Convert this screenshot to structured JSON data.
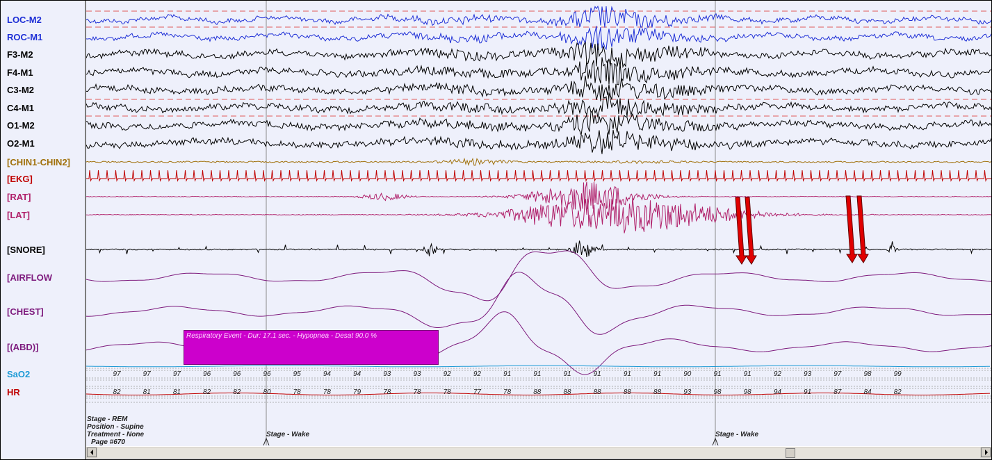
{
  "channels": [
    {
      "label": "LOC-M2",
      "color": "#1e2fd6"
    },
    {
      "label": "ROC-M1",
      "color": "#1e2fd6"
    },
    {
      "label": "F3-M2",
      "color": "#000000"
    },
    {
      "label": "F4-M1",
      "color": "#000000"
    },
    {
      "label": "C3-M2",
      "color": "#000000"
    },
    {
      "label": "C4-M1",
      "color": "#000000"
    },
    {
      "label": "O1-M2",
      "color": "#000000"
    },
    {
      "label": "O2-M1",
      "color": "#000000"
    },
    {
      "label": "[CHIN1-CHIN2]",
      "color": "#a0700a"
    },
    {
      "label": "[EKG]",
      "color": "#c00000"
    },
    {
      "label": "[RAT]",
      "color": "#b0206a"
    },
    {
      "label": "[LAT]",
      "color": "#b0206a"
    },
    {
      "label": "[SNORE]",
      "color": "#000000"
    },
    {
      "label": "[AIRFLOW",
      "color": "#7d1a7d"
    },
    {
      "label": "[CHEST]",
      "color": "#7d1a7d"
    },
    {
      "label": "[(ABD)]",
      "color": "#7d1a7d"
    },
    {
      "label": "SaO2",
      "color": "#1e9bd6"
    },
    {
      "label": "HR",
      "color": "#c00000"
    }
  ],
  "sao2_values": [
    "97",
    "97",
    "97",
    "96",
    "96",
    "96",
    "95",
    "94",
    "94",
    "93",
    "93",
    "92",
    "92",
    "91",
    "91",
    "91",
    "91",
    "91",
    "91",
    "90",
    "91",
    "91",
    "92",
    "93",
    "97",
    "98",
    "99"
  ],
  "hr_values": [
    "82",
    "81",
    "81",
    "82",
    "82",
    "80",
    "78",
    "78",
    "79",
    "78",
    "78",
    "78",
    "77",
    "78",
    "88",
    "88",
    "88",
    "88",
    "88",
    "93",
    "98",
    "98",
    "94",
    "91",
    "87",
    "84",
    "82"
  ],
  "event": {
    "text": "Respiratory Event - Dur: 17.1 sec. - Hypopnea - Desat 90.0 %"
  },
  "info": {
    "stage": "Stage - REM",
    "position": "Position - Supine",
    "treatment": "Treatment - None",
    "page": "Page #670",
    "stage_marker_1": "Stage - Wake",
    "stage_marker_2": "Stage - Wake"
  },
  "colors": {
    "arrow": "#e00000",
    "reference_dash": "#e05a5a",
    "background": "#eef0fb"
  }
}
